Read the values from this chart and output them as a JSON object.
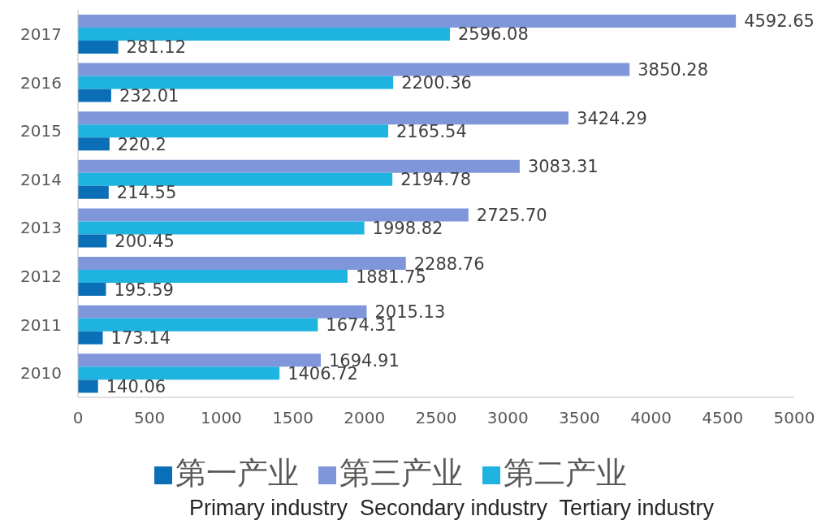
{
  "chart_data": {
    "type": "bar",
    "orientation": "horizontal",
    "categories": [
      "2017",
      "2016",
      "2015",
      "2014",
      "2013",
      "2012",
      "2011",
      "2010"
    ],
    "series": [
      {
        "name": "第三产业",
        "color": "#7f96db",
        "values": [
          4592.65,
          3850.28,
          3424.29,
          3083.31,
          2725.7,
          2288.76,
          2015.13,
          1694.91
        ],
        "value_labels": [
          "4592.65",
          "3850.28",
          "3424.29",
          "3083.31",
          "2725.70",
          "2288.76",
          "2015.13",
          "1694.91"
        ]
      },
      {
        "name": "第二产业",
        "color": "#1fb4e0",
        "values": [
          2596.08,
          2200.36,
          2165.54,
          2194.78,
          1998.82,
          1881.75,
          1674.31,
          1406.72
        ],
        "value_labels": [
          "2596.08",
          "2200.36",
          "2165.54",
          "2194.78",
          "1998.82",
          "1881.75",
          "1674.31",
          "1406.72"
        ]
      },
      {
        "name": "第一产业",
        "color": "#0a6fb7",
        "values": [
          281.12,
          232.01,
          220.2,
          214.55,
          200.45,
          195.59,
          173.14,
          140.06
        ],
        "value_labels": [
          "281.12",
          "232.01",
          "220.2",
          "214.55",
          "200.45",
          "195.59",
          "173.14",
          "140.06"
        ]
      }
    ],
    "xlim": [
      0,
      5000
    ],
    "xticks": [
      0,
      500,
      1000,
      1500,
      2000,
      2500,
      3000,
      3500,
      4000,
      4500,
      5000
    ],
    "grid": false,
    "legend": "bottom",
    "annotations": [
      "Primary industry  Secondary industry  Tertiary industry"
    ]
  }
}
